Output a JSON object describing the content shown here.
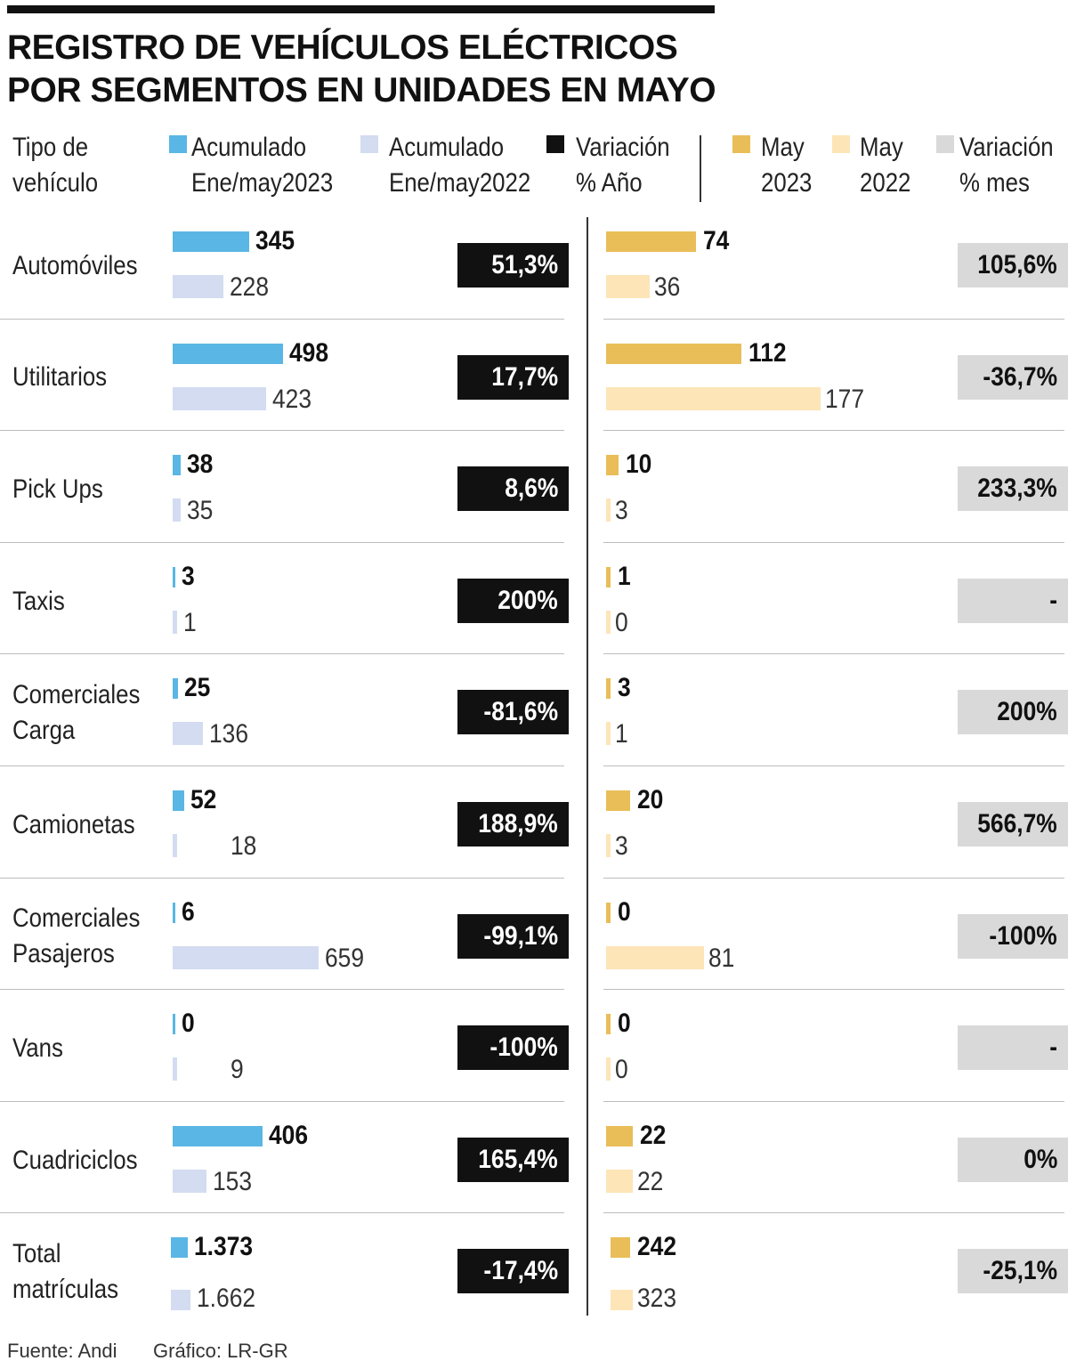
{
  "title": [
    "REGISTRO DE VEHÍCULOS ELÉCTRICOS",
    "POR SEGMENTOS EN UNIDADES EN MAYO"
  ],
  "legend": {
    "category": [
      "Tipo de",
      "vehículo"
    ],
    "acc2023": [
      "Acumulado",
      "Ene/may2023"
    ],
    "acc2022": [
      "Acumulado",
      "Ene/may2022"
    ],
    "var_year": [
      "Variación",
      "% Año"
    ],
    "may2023": [
      "May",
      "2023"
    ],
    "may2022": [
      "May",
      "2022"
    ],
    "var_month": [
      "Variación",
      "% mes"
    ]
  },
  "colors": {
    "acc2023": "#5ab6e4",
    "acc2022": "#d3dcf0",
    "var_year": "#111111",
    "may2023": "#e9be58",
    "may2022": "#fde5b8",
    "var_month": "#d9d9d9"
  },
  "footer": {
    "source": "Fuente: Andi",
    "graphic": "Gráfico: LR-GR"
  },
  "chart_data": {
    "type": "bar",
    "orientation": "horizontal",
    "title": "REGISTRO DE VEHÍCULOS ELÉCTRICOS POR SEGMENTOS EN UNIDADES EN MAYO",
    "categories": [
      [
        "Automóviles"
      ],
      [
        "Utilitarios"
      ],
      [
        "Pick Ups"
      ],
      [
        "Taxis"
      ],
      [
        "Comerciales",
        "Carga"
      ],
      [
        "Camionetas"
      ],
      [
        "Comerciales",
        "Pasajeros"
      ],
      [
        "Vans"
      ],
      [
        "Cuadriciclos"
      ],
      [
        "Total",
        "matrículas"
      ]
    ],
    "series": [
      {
        "name": "Acumulado Ene/may2023",
        "values": [
          345,
          498,
          38,
          3,
          25,
          52,
          6,
          0,
          406,
          1373
        ],
        "labels": [
          "345",
          "498",
          "38",
          "3",
          "25",
          "52",
          "6",
          "0",
          "406",
          "1.373"
        ]
      },
      {
        "name": "Acumulado Ene/may2022",
        "values": [
          228,
          423,
          35,
          1,
          136,
          18,
          659,
          9,
          153,
          1662
        ],
        "labels": [
          "228",
          "423",
          "35",
          "1",
          "136",
          "18",
          "659",
          "9",
          "153",
          "1.662"
        ]
      },
      {
        "name": "May 2023",
        "values": [
          74,
          112,
          10,
          1,
          3,
          20,
          0,
          0,
          22,
          242
        ],
        "labels": [
          "74",
          "112",
          "10",
          "1",
          "3",
          "20",
          "0",
          "0",
          "22",
          "242"
        ]
      },
      {
        "name": "May 2022",
        "values": [
          36,
          177,
          3,
          0,
          1,
          3,
          81,
          0,
          22,
          323
        ],
        "labels": [
          "36",
          "177",
          "3",
          "0",
          "1",
          "3",
          "81",
          "0",
          "22",
          "323"
        ]
      }
    ],
    "variation_year": [
      "51,3%",
      "17,7%",
      "8,6%",
      "200%",
      "-81,6%",
      "188,9%",
      "-99,1%",
      "-100%",
      "165,4%",
      "-17,4%"
    ],
    "variation_month": [
      "105,6%",
      "-36,7%",
      "233,3%",
      "-",
      "200%",
      "566,7%",
      "-100%",
      "-",
      "0%",
      "-25,1%"
    ]
  }
}
